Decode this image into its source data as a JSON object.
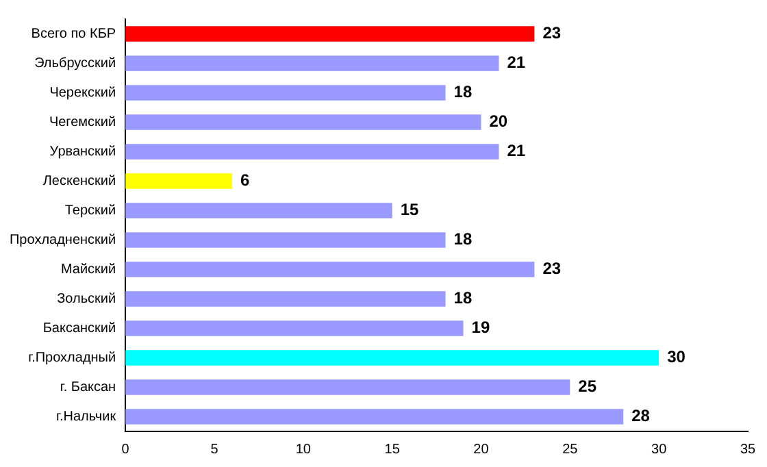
{
  "chart_data": {
    "type": "bar",
    "orientation": "horizontal",
    "categories": [
      "Всего по КБР",
      "Эльбрусский",
      "Черекский",
      "Чегемский",
      "Урванский",
      "Лескенский",
      "Терский",
      "Прохладненский",
      "Майский",
      "Зольский",
      "Баксанский",
      "г.Прохладный",
      "г. Баксан",
      "г.Нальчик"
    ],
    "values": [
      23,
      21,
      18,
      20,
      21,
      6,
      15,
      18,
      23,
      18,
      19,
      30,
      25,
      28
    ],
    "colors": [
      "#ff0000",
      "#9999ff",
      "#9999ff",
      "#9999ff",
      "#9999ff",
      "#ffff00",
      "#9999ff",
      "#9999ff",
      "#9999ff",
      "#9999ff",
      "#9999ff",
      "#00ffff",
      "#9999ff",
      "#9999ff"
    ],
    "xlim": [
      0,
      35
    ],
    "xticks": [
      0,
      5,
      10,
      15,
      20,
      25,
      30,
      35
    ],
    "grid": false,
    "data_labels": true
  }
}
